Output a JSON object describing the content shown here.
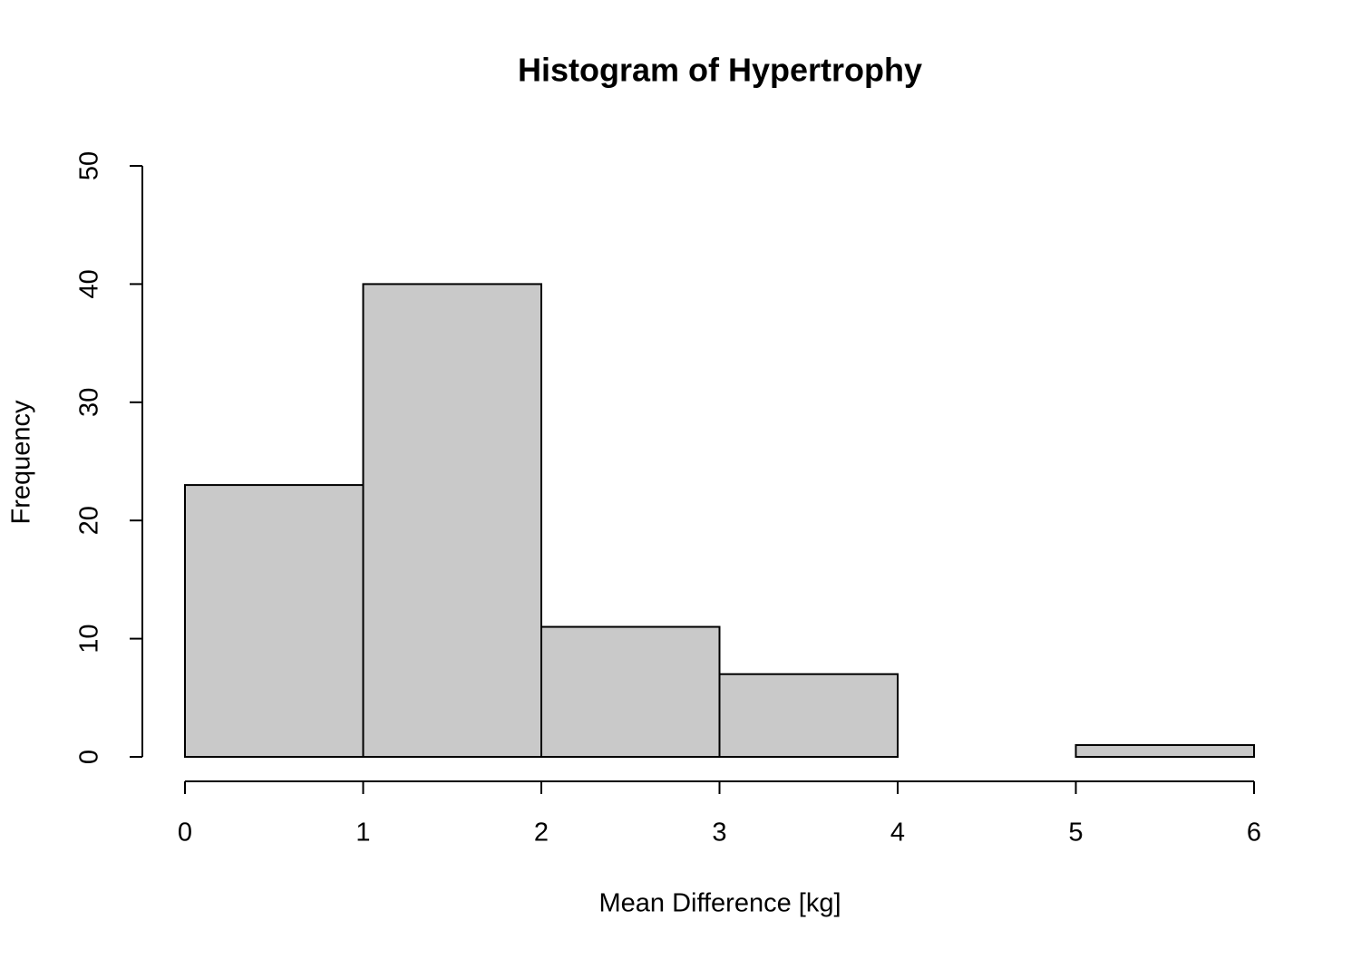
{
  "chart_data": {
    "type": "histogram",
    "title": "Histogram of Hypertrophy",
    "x_label": "Mean Difference [kg]",
    "y_label": "Frequency",
    "bins": [
      0,
      1,
      2,
      3,
      4,
      5,
      6
    ],
    "counts": [
      23,
      40,
      11,
      7,
      0,
      1
    ],
    "color": "#c9c9c9",
    "xlim": [
      0,
      6
    ],
    "xticks": [
      0,
      1,
      2,
      3,
      4,
      5,
      6
    ],
    "ylim": [
      0,
      50
    ],
    "yticks": [
      0,
      10,
      20,
      30,
      40,
      50
    ]
  }
}
